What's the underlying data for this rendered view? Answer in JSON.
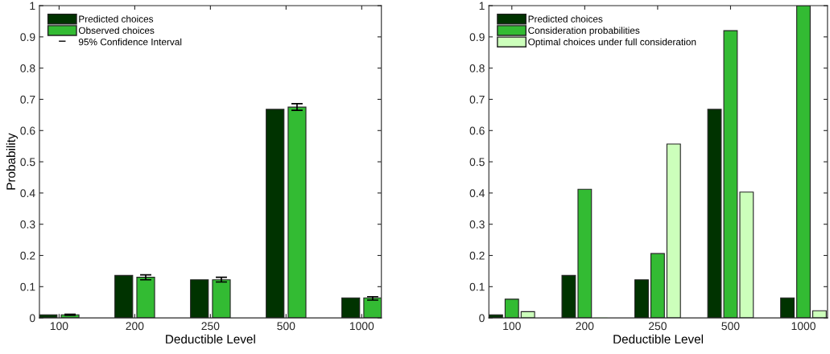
{
  "chart_data": [
    {
      "type": "bar",
      "xlabel": "Deductible Level",
      "ylabel": "Probability",
      "categories": [
        "100",
        "200",
        "250",
        "500",
        "1000"
      ],
      "series": [
        {
          "name": "Predicted choices",
          "color": "#003300",
          "values": [
            0.01,
            0.136,
            0.122,
            0.668,
            0.064
          ]
        },
        {
          "name": "Observed choices",
          "color": "#33bb33",
          "values": [
            0.01,
            0.13,
            0.122,
            0.675,
            0.064
          ],
          "errors": [
            [
              0.008,
              0.012
            ],
            [
              0.122,
              0.138
            ],
            [
              0.115,
              0.13
            ],
            [
              0.665,
              0.686
            ],
            [
              0.057,
              0.068
            ]
          ]
        }
      ],
      "annotations": [
        "95% Confidence Interval"
      ],
      "ylim": [
        0,
        1
      ],
      "yticks": [
        0,
        0.1,
        0.2,
        0.3,
        0.4,
        0.5,
        0.6,
        0.7,
        0.8,
        0.9,
        1
      ],
      "grid": false,
      "legend": "top left"
    },
    {
      "type": "bar",
      "xlabel": "Deductible Level",
      "categories": [
        "100",
        "200",
        "250",
        "500",
        "1000"
      ],
      "series": [
        {
          "name": "Predicted choices",
          "color": "#003300",
          "values": [
            0.01,
            0.136,
            0.122,
            0.668,
            0.064
          ]
        },
        {
          "name": "Consideration probabilities",
          "color": "#33bb33",
          "values": [
            0.06,
            0.412,
            0.206,
            0.92,
            1.0
          ]
        },
        {
          "name": "Optimal choices under full consideration",
          "color": "#ccffbb",
          "values": [
            0.02,
            0.0,
            0.557,
            0.403,
            0.023
          ]
        }
      ],
      "ylim": [
        0,
        1
      ],
      "yticks": [
        0,
        0.1,
        0.2,
        0.3,
        0.4,
        0.5,
        0.6,
        0.7,
        0.8,
        0.9,
        1
      ],
      "grid": false,
      "legend": "top left"
    }
  ]
}
